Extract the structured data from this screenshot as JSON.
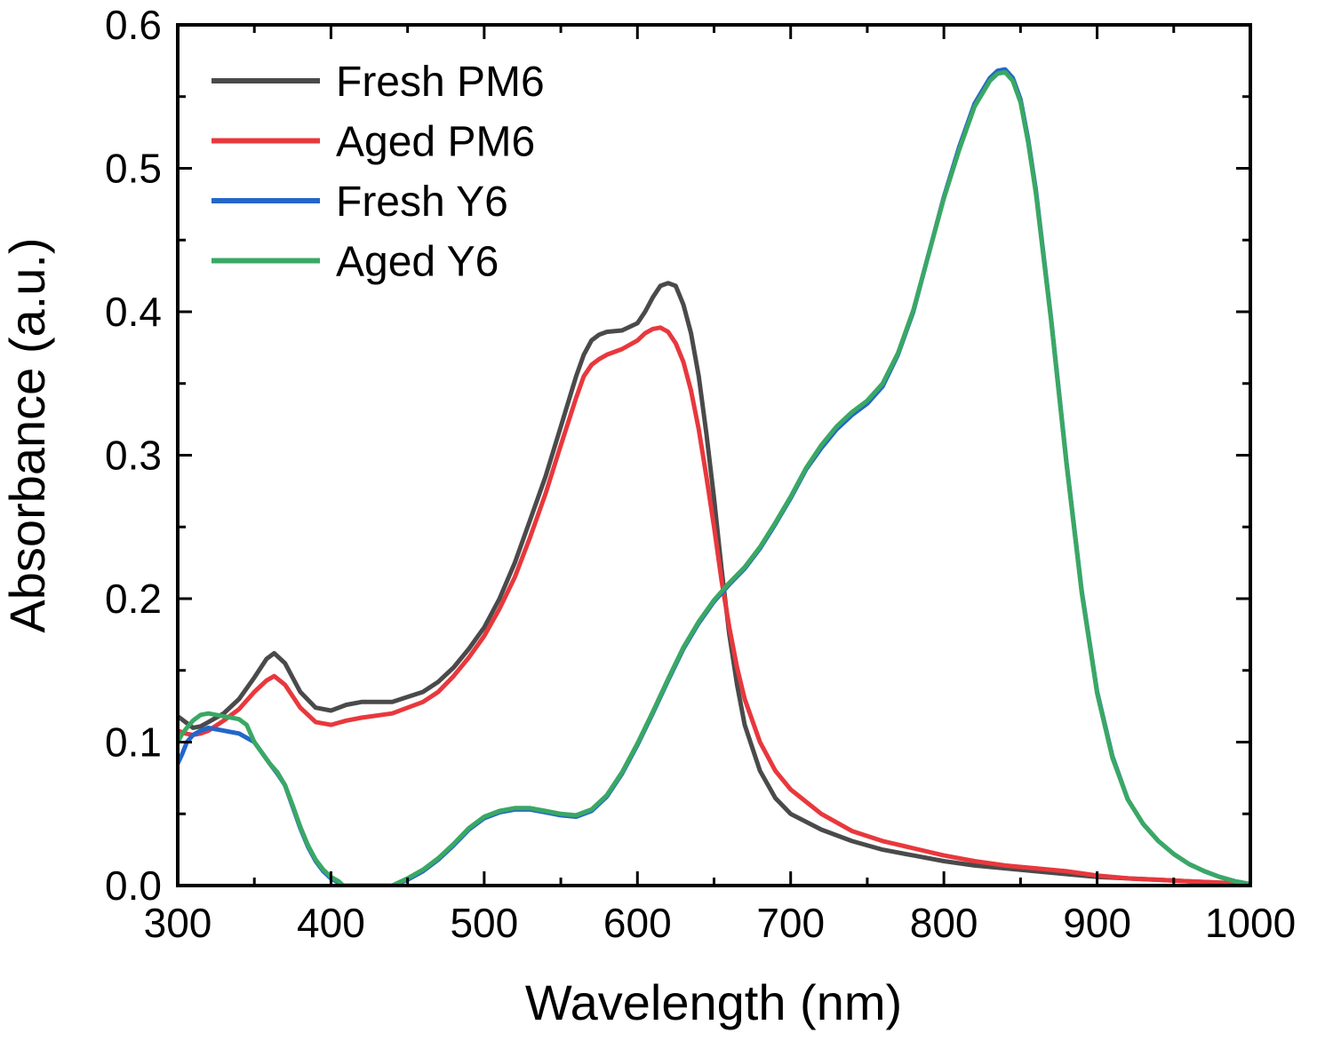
{
  "chart_data": {
    "type": "line",
    "title": "",
    "xlabel": "Wavelength (nm)",
    "ylabel": "Absorbance (a.u.)",
    "xlim": [
      300,
      1000
    ],
    "ylim": [
      0.0,
      0.6
    ],
    "x_major_ticks": [
      300,
      400,
      500,
      600,
      700,
      800,
      900,
      1000
    ],
    "x_tick_labels": [
      "300",
      "400",
      "500",
      "600",
      "700",
      "800",
      "900",
      "1000"
    ],
    "y_major_ticks": [
      0.0,
      0.1,
      0.2,
      0.3,
      0.4,
      0.5,
      0.6
    ],
    "y_tick_labels": [
      "0.0",
      "0.1",
      "0.2",
      "0.3",
      "0.4",
      "0.5",
      "0.6"
    ],
    "x_minor_step": 50,
    "y_minor_step": 0.05,
    "grid": false,
    "legend_position": "top-left",
    "series": [
      {
        "name": "Fresh PM6",
        "color": "#4a4a4a",
        "x": [
          300,
          305,
          310,
          315,
          320,
          330,
          340,
          350,
          358,
          363,
          370,
          380,
          390,
          400,
          410,
          420,
          440,
          460,
          470,
          480,
          490,
          500,
          510,
          520,
          530,
          540,
          550,
          560,
          565,
          570,
          575,
          580,
          590,
          600,
          605,
          610,
          615,
          620,
          625,
          630,
          635,
          640,
          645,
          650,
          655,
          660,
          665,
          670,
          680,
          690,
          700,
          720,
          740,
          760,
          780,
          800,
          820,
          840,
          860,
          880,
          900,
          920,
          940,
          960,
          980,
          1000
        ],
        "y": [
          0.118,
          0.114,
          0.11,
          0.111,
          0.114,
          0.12,
          0.13,
          0.145,
          0.158,
          0.162,
          0.155,
          0.135,
          0.124,
          0.122,
          0.126,
          0.128,
          0.128,
          0.135,
          0.142,
          0.152,
          0.165,
          0.18,
          0.2,
          0.225,
          0.255,
          0.285,
          0.32,
          0.355,
          0.37,
          0.38,
          0.384,
          0.386,
          0.387,
          0.392,
          0.4,
          0.41,
          0.418,
          0.42,
          0.418,
          0.405,
          0.385,
          0.355,
          0.315,
          0.27,
          0.22,
          0.175,
          0.14,
          0.112,
          0.08,
          0.061,
          0.05,
          0.039,
          0.031,
          0.025,
          0.021,
          0.017,
          0.014,
          0.012,
          0.01,
          0.008,
          0.006,
          0.005,
          0.004,
          0.003,
          0.002,
          0.001
        ]
      },
      {
        "name": "Aged PM6",
        "color": "#e8383d",
        "x": [
          300,
          305,
          310,
          315,
          320,
          330,
          340,
          350,
          358,
          363,
          370,
          380,
          390,
          400,
          410,
          420,
          440,
          460,
          470,
          480,
          490,
          500,
          510,
          520,
          530,
          540,
          550,
          560,
          565,
          570,
          575,
          580,
          590,
          600,
          605,
          610,
          615,
          620,
          625,
          630,
          635,
          640,
          645,
          650,
          655,
          660,
          665,
          670,
          680,
          690,
          700,
          720,
          740,
          760,
          780,
          800,
          820,
          840,
          860,
          880,
          900,
          920,
          940,
          960,
          980,
          1000
        ],
        "y": [
          0.108,
          0.106,
          0.105,
          0.106,
          0.108,
          0.115,
          0.123,
          0.135,
          0.143,
          0.146,
          0.14,
          0.124,
          0.114,
          0.112,
          0.115,
          0.117,
          0.12,
          0.128,
          0.135,
          0.146,
          0.159,
          0.174,
          0.193,
          0.215,
          0.243,
          0.273,
          0.307,
          0.34,
          0.355,
          0.363,
          0.367,
          0.37,
          0.374,
          0.38,
          0.385,
          0.388,
          0.389,
          0.386,
          0.378,
          0.365,
          0.345,
          0.318,
          0.285,
          0.25,
          0.212,
          0.18,
          0.152,
          0.13,
          0.1,
          0.08,
          0.067,
          0.05,
          0.038,
          0.031,
          0.026,
          0.021,
          0.017,
          0.014,
          0.012,
          0.01,
          0.007,
          0.005,
          0.004,
          0.003,
          0.002,
          0.001
        ]
      },
      {
        "name": "Fresh Y6",
        "color": "#2466c9",
        "x": [
          300,
          303,
          306,
          310,
          315,
          320,
          325,
          330,
          340,
          350,
          360,
          365,
          370,
          375,
          380,
          385,
          390,
          395,
          400,
          405,
          408,
          412,
          420,
          430,
          440,
          450,
          460,
          470,
          480,
          490,
          500,
          510,
          520,
          530,
          540,
          550,
          560,
          570,
          580,
          590,
          600,
          610,
          620,
          630,
          640,
          650,
          660,
          670,
          680,
          690,
          700,
          710,
          720,
          730,
          740,
          750,
          760,
          770,
          780,
          790,
          800,
          810,
          820,
          830,
          835,
          840,
          845,
          850,
          855,
          860,
          870,
          880,
          890,
          900,
          910,
          920,
          930,
          940,
          950,
          960,
          970,
          980,
          990,
          1000
        ],
        "y": [
          0.085,
          0.092,
          0.1,
          0.105,
          0.108,
          0.11,
          0.109,
          0.108,
          0.106,
          0.1,
          0.085,
          0.078,
          0.07,
          0.055,
          0.04,
          0.027,
          0.017,
          0.01,
          0.005,
          0.002,
          0.0,
          0.0,
          0.0,
          0.0,
          0.0,
          0.004,
          0.01,
          0.018,
          0.028,
          0.039,
          0.047,
          0.051,
          0.053,
          0.053,
          0.051,
          0.049,
          0.048,
          0.052,
          0.062,
          0.078,
          0.098,
          0.12,
          0.143,
          0.165,
          0.183,
          0.198,
          0.21,
          0.221,
          0.235,
          0.252,
          0.27,
          0.29,
          0.305,
          0.318,
          0.328,
          0.336,
          0.348,
          0.37,
          0.4,
          0.44,
          0.48,
          0.515,
          0.545,
          0.563,
          0.568,
          0.569,
          0.563,
          0.548,
          0.52,
          0.485,
          0.395,
          0.295,
          0.205,
          0.135,
          0.09,
          0.06,
          0.043,
          0.031,
          0.022,
          0.015,
          0.01,
          0.006,
          0.003,
          0.001
        ]
      },
      {
        "name": "Aged Y6",
        "color": "#3aa864",
        "x": [
          300,
          303,
          306,
          310,
          315,
          320,
          325,
          330,
          335,
          340,
          345,
          350,
          360,
          365,
          370,
          375,
          380,
          385,
          390,
          395,
          400,
          405,
          408,
          412,
          420,
          430,
          440,
          450,
          460,
          470,
          480,
          490,
          500,
          510,
          520,
          530,
          540,
          550,
          560,
          570,
          580,
          590,
          600,
          610,
          620,
          630,
          640,
          650,
          660,
          670,
          680,
          690,
          700,
          710,
          720,
          730,
          740,
          750,
          760,
          770,
          780,
          790,
          800,
          810,
          820,
          830,
          835,
          840,
          845,
          850,
          855,
          860,
          870,
          880,
          890,
          900,
          910,
          920,
          930,
          940,
          950,
          960,
          970,
          980,
          990,
          1000
        ],
        "y": [
          0.1,
          0.106,
          0.11,
          0.115,
          0.119,
          0.12,
          0.119,
          0.118,
          0.117,
          0.116,
          0.112,
          0.1,
          0.085,
          0.079,
          0.07,
          0.056,
          0.041,
          0.028,
          0.018,
          0.011,
          0.006,
          0.003,
          0.0,
          0.0,
          0.0,
          0.0,
          0.0,
          0.005,
          0.011,
          0.019,
          0.029,
          0.04,
          0.048,
          0.052,
          0.054,
          0.054,
          0.052,
          0.05,
          0.049,
          0.053,
          0.063,
          0.079,
          0.099,
          0.121,
          0.144,
          0.166,
          0.184,
          0.199,
          0.211,
          0.222,
          0.236,
          0.253,
          0.271,
          0.291,
          0.307,
          0.32,
          0.33,
          0.338,
          0.35,
          0.371,
          0.401,
          0.44,
          0.479,
          0.513,
          0.543,
          0.561,
          0.566,
          0.567,
          0.561,
          0.546,
          0.518,
          0.483,
          0.394,
          0.294,
          0.204,
          0.134,
          0.089,
          0.06,
          0.043,
          0.031,
          0.022,
          0.015,
          0.01,
          0.006,
          0.003,
          0.001
        ]
      }
    ]
  }
}
